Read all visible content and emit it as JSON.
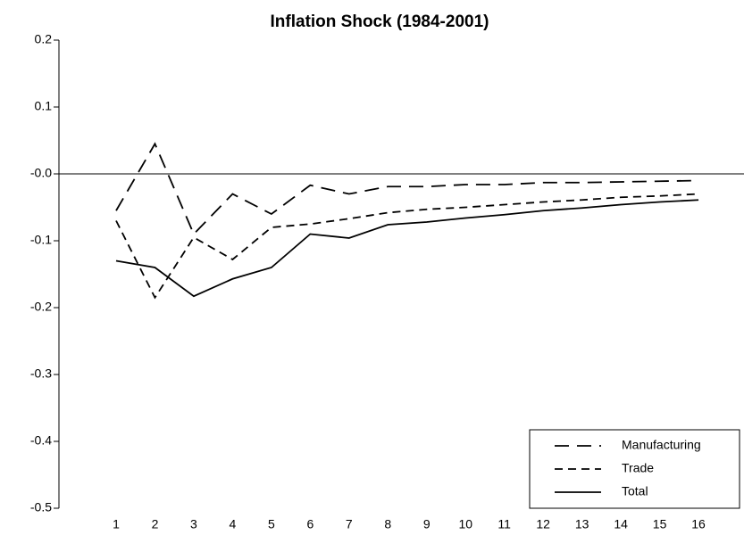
{
  "chart_data": {
    "type": "line",
    "title": "Inflation Shock (1984-2001)",
    "categories": [
      "1",
      "2",
      "3",
      "4",
      "5",
      "6",
      "7",
      "8",
      "9",
      "10",
      "11",
      "12",
      "13",
      "14",
      "15",
      "16"
    ],
    "series": [
      {
        "name": "Manufacturing",
        "color": "#000000",
        "dash": "16,9",
        "values": [
          -0.055,
          0.045,
          -0.09,
          -0.03,
          -0.06,
          -0.017,
          -0.03,
          -0.019,
          -0.019,
          -0.016,
          -0.016,
          -0.013,
          -0.013,
          -0.012,
          -0.011,
          -0.01
        ]
      },
      {
        "name": "Trade",
        "color": "#000000",
        "dash": "9,6",
        "values": [
          -0.07,
          -0.185,
          -0.095,
          -0.128,
          -0.08,
          -0.075,
          -0.067,
          -0.058,
          -0.053,
          -0.05,
          -0.046,
          -0.042,
          -0.039,
          -0.035,
          -0.033,
          -0.03
        ]
      },
      {
        "name": "Total",
        "color": "#000000",
        "dash": "none",
        "values": [
          -0.13,
          -0.14,
          -0.183,
          -0.157,
          -0.14,
          -0.09,
          -0.096,
          -0.076,
          -0.072,
          -0.066,
          -0.061,
          -0.055,
          -0.051,
          -0.046,
          -0.042,
          -0.039
        ]
      }
    ],
    "ylim": [
      -0.5,
      0.2
    ],
    "yticks": [
      0.2,
      0.1,
      {
        "value": 0,
        "label": "-0.0"
      },
      -0.1,
      -0.2,
      -0.3,
      -0.4,
      -0.5
    ],
    "zero_line": true,
    "legend": "lower right"
  }
}
